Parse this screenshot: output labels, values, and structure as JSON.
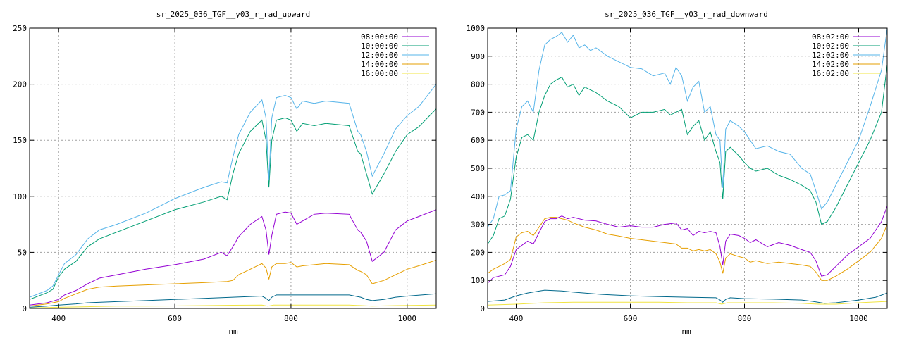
{
  "chart_data": [
    {
      "type": "line",
      "title": "sr_2025_036_TGF__y03_r_rad_upward",
      "xlabel": "nm",
      "ylabel": "",
      "xlim": [
        350,
        1050
      ],
      "ylim": [
        0,
        250
      ],
      "xticks": [
        400,
        600,
        800,
        1000
      ],
      "yticks": [
        0,
        50,
        100,
        150,
        200,
        250
      ],
      "grid": true,
      "legend_position": "top-right",
      "series": [
        {
          "name": "08:00:00",
          "color": "#9400d3",
          "x": [
            350,
            380,
            400,
            410,
            430,
            450,
            470,
            500,
            550,
            600,
            650,
            680,
            690,
            700,
            710,
            730,
            750,
            757,
            762,
            767,
            775,
            790,
            800,
            810,
            820,
            840,
            860,
            900,
            915,
            920,
            930,
            940,
            960,
            980,
            1000,
            1020,
            1050
          ],
          "y": [
            3,
            5,
            8,
            12,
            16,
            22,
            27,
            30,
            35,
            39,
            44,
            50,
            47,
            55,
            64,
            75,
            82,
            70,
            48,
            65,
            84,
            86,
            85,
            75,
            78,
            84,
            85,
            84,
            70,
            68,
            60,
            42,
            50,
            70,
            78,
            82,
            88
          ]
        },
        {
          "name": "10:00:00",
          "color": "#009e73",
          "x": [
            350,
            380,
            390,
            400,
            410,
            430,
            450,
            470,
            500,
            550,
            600,
            650,
            680,
            690,
            700,
            710,
            730,
            750,
            757,
            762,
            767,
            775,
            790,
            800,
            810,
            820,
            840,
            860,
            900,
            915,
            920,
            930,
            940,
            960,
            980,
            1000,
            1020,
            1050
          ],
          "y": [
            8,
            14,
            17,
            28,
            35,
            42,
            55,
            62,
            68,
            78,
            88,
            95,
            100,
            97,
            120,
            138,
            158,
            168,
            150,
            108,
            150,
            168,
            170,
            168,
            158,
            165,
            163,
            165,
            163,
            140,
            138,
            120,
            102,
            120,
            140,
            155,
            162,
            178
          ]
        },
        {
          "name": "12:00:00",
          "color": "#56b4e9",
          "x": [
            350,
            380,
            390,
            400,
            410,
            430,
            450,
            470,
            500,
            550,
            600,
            650,
            680,
            690,
            700,
            710,
            730,
            750,
            757,
            762,
            767,
            775,
            790,
            800,
            810,
            820,
            840,
            860,
            900,
            915,
            920,
            930,
            940,
            960,
            980,
            1000,
            1020,
            1050
          ],
          "y": [
            10,
            16,
            20,
            30,
            40,
            48,
            62,
            70,
            75,
            85,
            98,
            108,
            113,
            112,
            135,
            155,
            175,
            186,
            170,
            115,
            170,
            188,
            190,
            188,
            178,
            185,
            183,
            185,
            183,
            158,
            155,
            140,
            118,
            138,
            160,
            172,
            180,
            200
          ]
        },
        {
          "name": "14:00:00",
          "color": "#e69f00",
          "x": [
            350,
            380,
            400,
            410,
            430,
            450,
            470,
            500,
            550,
            600,
            650,
            690,
            700,
            710,
            730,
            750,
            757,
            762,
            767,
            775,
            790,
            800,
            810,
            820,
            840,
            860,
            900,
            915,
            920,
            930,
            940,
            960,
            980,
            1000,
            1020,
            1050
          ],
          "y": [
            2,
            4,
            6,
            9,
            13,
            17,
            19,
            20,
            21,
            22,
            23,
            24,
            25,
            30,
            35,
            40,
            36,
            26,
            37,
            40,
            40,
            41,
            37,
            38,
            39,
            40,
            39,
            34,
            33,
            30,
            22,
            25,
            30,
            35,
            38,
            43
          ]
        },
        {
          "name": "16:00:00",
          "color": "#f0e442",
          "x": [
            350,
            400,
            450,
            500,
            550,
            600,
            650,
            700,
            750,
            760,
            770,
            800,
            850,
            900,
            940,
            980,
            1050
          ],
          "y": [
            0.5,
            1,
            1.5,
            2,
            2,
            2.2,
            2.5,
            2.8,
            3,
            2,
            3,
            3,
            3,
            3,
            2,
            2.5,
            3
          ]
        }
      ],
      "extra_series": [
        {
          "name": "",
          "color": "#00688b",
          "x": [
            350,
            380,
            400,
            430,
            450,
            500,
            550,
            600,
            650,
            700,
            750,
            757,
            762,
            767,
            775,
            800,
            850,
            900,
            920,
            930,
            940,
            960,
            980,
            1000,
            1050
          ],
          "y": [
            1,
            2,
            3,
            4,
            5,
            6,
            7,
            8,
            9,
            10,
            11,
            9,
            7,
            10,
            12,
            12,
            12,
            12,
            10,
            8,
            7,
            8,
            10,
            11,
            13
          ]
        }
      ]
    },
    {
      "type": "line",
      "title": "sr_2025_036_TGF__y03_r_rad_downward",
      "xlabel": "nm",
      "ylabel": "",
      "xlim": [
        350,
        1050
      ],
      "ylim": [
        0,
        1000
      ],
      "xticks": [
        400,
        600,
        800,
        1000
      ],
      "yticks": [
        0,
        100,
        200,
        300,
        400,
        500,
        600,
        700,
        800,
        900,
        1000
      ],
      "grid": true,
      "legend_position": "top-right",
      "series": [
        {
          "name": "08:02:00",
          "color": "#9400d3",
          "x": [
            350,
            360,
            370,
            380,
            390,
            400,
            410,
            420,
            430,
            440,
            450,
            460,
            470,
            480,
            490,
            500,
            520,
            540,
            560,
            580,
            600,
            620,
            640,
            660,
            680,
            690,
            700,
            710,
            720,
            730,
            740,
            750,
            757,
            762,
            767,
            775,
            790,
            800,
            810,
            820,
            840,
            860,
            880,
            900,
            915,
            925,
            935,
            945,
            960,
            980,
            1000,
            1020,
            1040,
            1050
          ],
          "y": [
            90,
            110,
            115,
            120,
            150,
            210,
            225,
            240,
            230,
            270,
            310,
            320,
            320,
            330,
            320,
            325,
            315,
            312,
            300,
            290,
            295,
            290,
            290,
            300,
            305,
            280,
            285,
            260,
            275,
            270,
            275,
            270,
            220,
            155,
            240,
            265,
            260,
            250,
            235,
            245,
            220,
            235,
            225,
            210,
            200,
            170,
            115,
            120,
            150,
            190,
            220,
            250,
            310,
            365
          ]
        },
        {
          "name": "10:02:00",
          "color": "#009e73",
          "x": [
            350,
            360,
            370,
            380,
            390,
            400,
            410,
            420,
            430,
            440,
            450,
            460,
            470,
            480,
            490,
            500,
            510,
            520,
            530,
            540,
            560,
            580,
            600,
            620,
            640,
            660,
            670,
            680,
            690,
            700,
            710,
            720,
            730,
            740,
            750,
            757,
            762,
            767,
            775,
            790,
            800,
            810,
            820,
            840,
            860,
            880,
            900,
            915,
            925,
            935,
            945,
            960,
            980,
            1000,
            1020,
            1040,
            1050
          ],
          "y": [
            230,
            260,
            320,
            330,
            390,
            540,
            610,
            620,
            600,
            700,
            760,
            800,
            815,
            825,
            790,
            800,
            760,
            790,
            780,
            770,
            740,
            720,
            680,
            700,
            700,
            710,
            690,
            700,
            710,
            620,
            650,
            670,
            600,
            630,
            560,
            520,
            390,
            560,
            575,
            545,
            520,
            500,
            490,
            500,
            475,
            460,
            440,
            420,
            380,
            300,
            310,
            360,
            440,
            520,
            600,
            700,
            870
          ]
        },
        {
          "name": "12:02:00",
          "color": "#56b4e9",
          "x": [
            350,
            360,
            370,
            380,
            390,
            400,
            410,
            420,
            430,
            440,
            450,
            460,
            470,
            480,
            490,
            500,
            510,
            520,
            530,
            540,
            560,
            580,
            600,
            620,
            640,
            660,
            670,
            680,
            690,
            700,
            710,
            720,
            730,
            740,
            750,
            757,
            762,
            767,
            775,
            790,
            800,
            810,
            820,
            840,
            860,
            880,
            900,
            915,
            925,
            935,
            945,
            960,
            980,
            1000,
            1020,
            1040,
            1050
          ],
          "y": [
            290,
            320,
            400,
            405,
            420,
            640,
            720,
            740,
            700,
            850,
            940,
            960,
            970,
            985,
            950,
            975,
            930,
            940,
            920,
            930,
            900,
            880,
            860,
            855,
            830,
            840,
            800,
            860,
            830,
            740,
            790,
            810,
            700,
            720,
            620,
            600,
            430,
            640,
            670,
            650,
            630,
            600,
            570,
            580,
            560,
            550,
            500,
            480,
            420,
            355,
            380,
            440,
            520,
            600,
            720,
            850,
            1000
          ]
        },
        {
          "name": "14:02:00",
          "color": "#e69f00",
          "x": [
            350,
            360,
            370,
            380,
            390,
            400,
            410,
            420,
            430,
            440,
            450,
            460,
            470,
            480,
            490,
            500,
            520,
            540,
            560,
            580,
            600,
            620,
            640,
            660,
            680,
            690,
            700,
            710,
            720,
            730,
            740,
            750,
            757,
            762,
            767,
            775,
            790,
            800,
            810,
            820,
            840,
            860,
            880,
            900,
            915,
            925,
            935,
            945,
            960,
            980,
            1000,
            1020,
            1040,
            1050
          ],
          "y": [
            125,
            140,
            150,
            160,
            175,
            255,
            270,
            275,
            260,
            290,
            320,
            325,
            325,
            320,
            315,
            305,
            290,
            280,
            265,
            258,
            250,
            245,
            240,
            235,
            230,
            215,
            215,
            205,
            210,
            205,
            210,
            195,
            165,
            125,
            180,
            195,
            185,
            180,
            165,
            170,
            160,
            165,
            160,
            155,
            150,
            130,
            100,
            100,
            115,
            140,
            170,
            200,
            250,
            300
          ]
        },
        {
          "name": "16:02:00",
          "color": "#f0e442",
          "x": [
            350,
            400,
            450,
            500,
            550,
            600,
            650,
            700,
            750,
            760,
            770,
            800,
            850,
            900,
            930,
            960,
            1000,
            1050
          ],
          "y": [
            12,
            15,
            20,
            22,
            22,
            22,
            22,
            20,
            20,
            15,
            20,
            20,
            20,
            18,
            15,
            15,
            20,
            25
          ]
        }
      ],
      "extra_series": [
        {
          "name": "",
          "color": "#00688b",
          "x": [
            350,
            380,
            400,
            420,
            450,
            480,
            500,
            550,
            600,
            650,
            700,
            750,
            757,
            762,
            767,
            775,
            800,
            850,
            900,
            920,
            940,
            960,
            1000,
            1030,
            1050
          ],
          "y": [
            25,
            30,
            45,
            55,
            65,
            62,
            58,
            50,
            45,
            42,
            40,
            38,
            30,
            22,
            32,
            38,
            35,
            33,
            30,
            25,
            18,
            20,
            30,
            40,
            55
          ]
        }
      ]
    }
  ]
}
